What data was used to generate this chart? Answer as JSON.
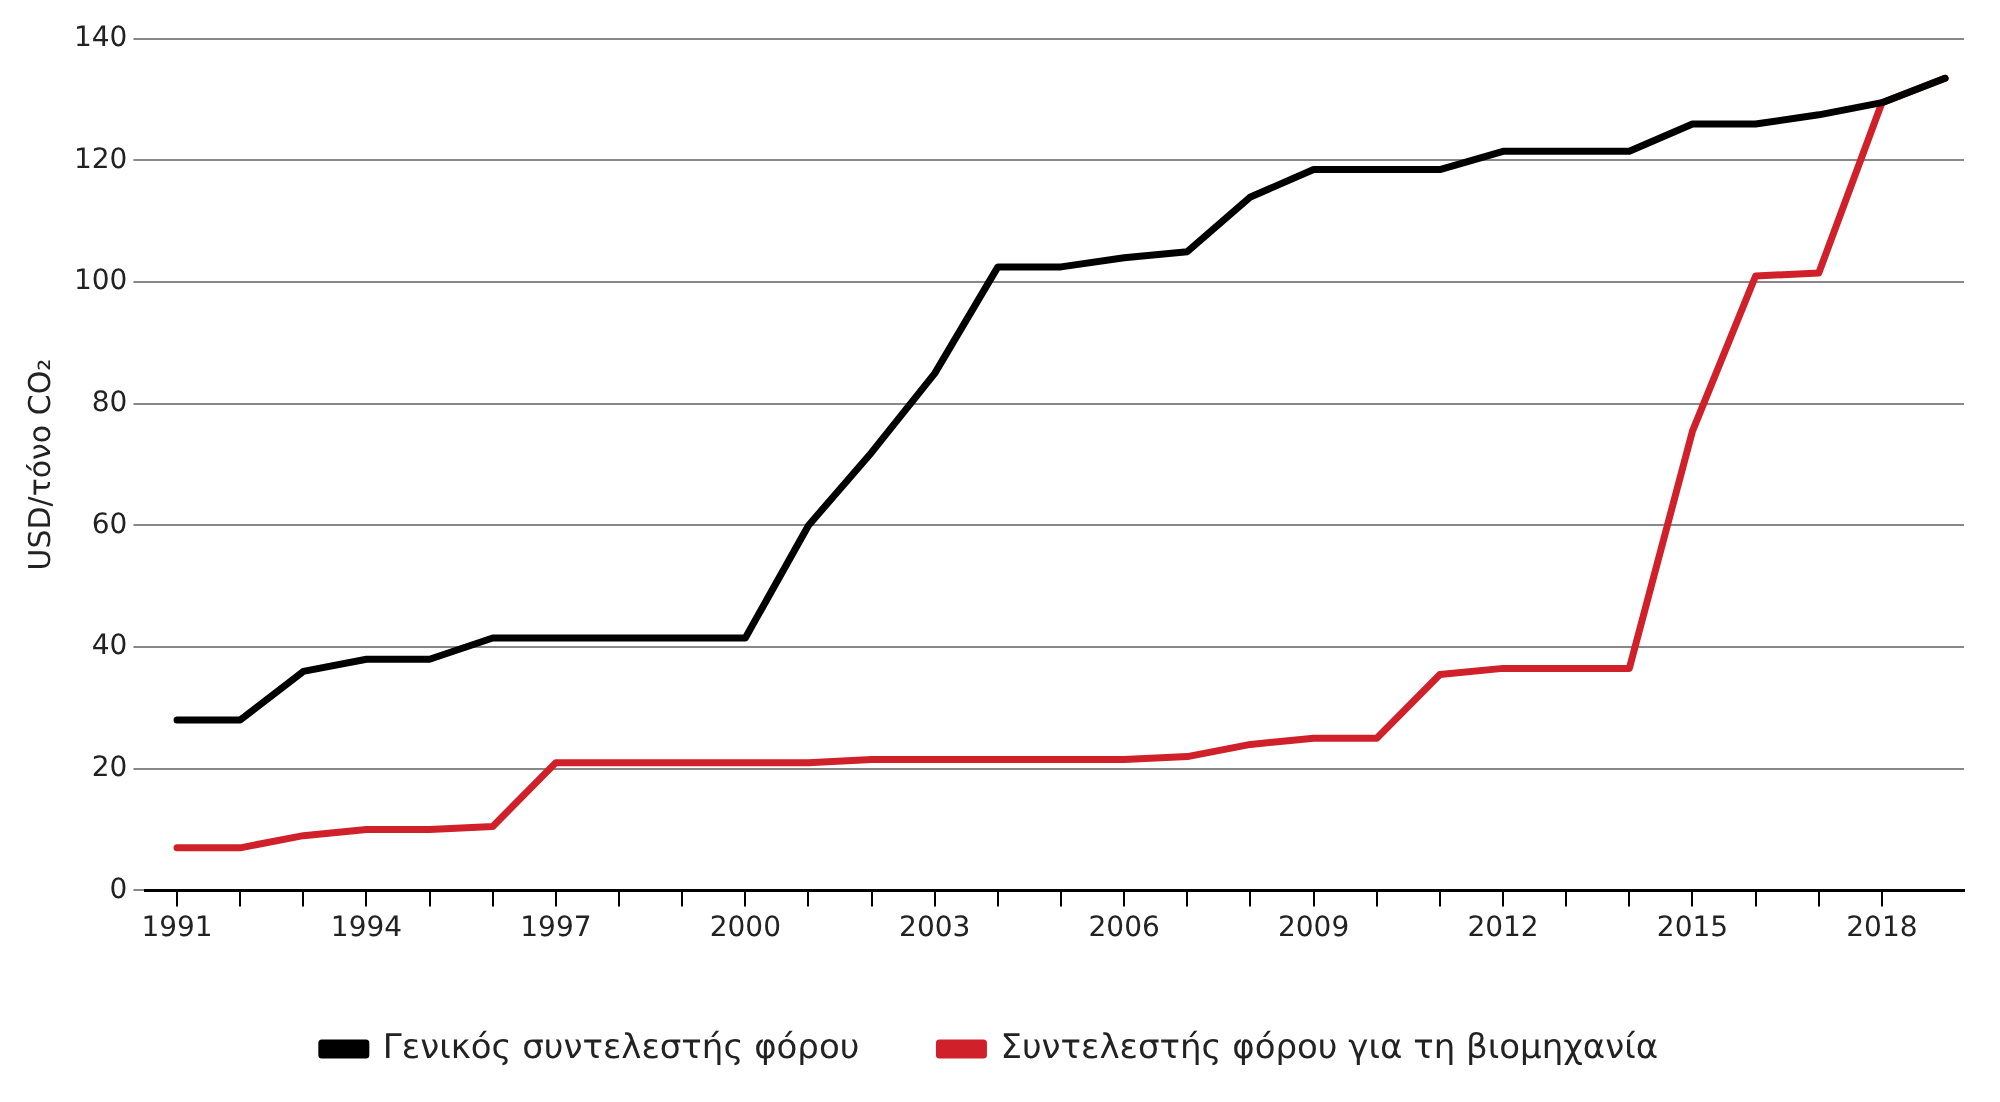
{
  "chart_data": {
    "type": "line",
    "ylabel": "USD/τόνο CO₂",
    "x": [
      1991,
      1992,
      1993,
      1994,
      1995,
      1996,
      1997,
      1998,
      1999,
      2000,
      2001,
      2002,
      2003,
      2004,
      2005,
      2006,
      2007,
      2008,
      2009,
      2010,
      2011,
      2012,
      2013,
      2014,
      2015,
      2016,
      2017,
      2018,
      2019
    ],
    "series": [
      {
        "name": "Γενικός συντελεστής φόρου",
        "color": "#000000",
        "values": [
          28,
          28,
          36,
          38,
          38,
          41.5,
          41.5,
          41.5,
          41.5,
          41.5,
          60,
          72,
          85,
          102.5,
          102.5,
          104,
          105,
          114,
          118.5,
          118.5,
          118.5,
          121.5,
          121.5,
          121.5,
          126,
          126,
          127.5,
          129.5,
          133.5
        ]
      },
      {
        "name": "Συντελεστής φόρου για τη βιομηχανία",
        "color": "#d0202a",
        "values": [
          7,
          7,
          9,
          10,
          10,
          10.5,
          21,
          21,
          21,
          21,
          21,
          21.5,
          21.5,
          21.5,
          21.5,
          21.5,
          22,
          24,
          25,
          25,
          35.5,
          36.5,
          36.5,
          36.5,
          75.5,
          101,
          101.5,
          129.5,
          133.5
        ]
      }
    ],
    "xlim": [
      1990.5,
      2019.3
    ],
    "xticks": [
      1991,
      {
        "value": 1992,
        "label": null
      },
      {
        "value": 1993,
        "label": null
      },
      1994,
      {
        "value": 1995,
        "label": null
      },
      {
        "value": 1996,
        "label": null
      },
      1997,
      {
        "value": 1998,
        "label": null
      },
      {
        "value": 1999,
        "label": null
      },
      2000,
      {
        "value": 2001,
        "label": null
      },
      {
        "value": 2002,
        "label": null
      },
      2003,
      {
        "value": 2004,
        "label": null
      },
      {
        "value": 2005,
        "label": null
      },
      2006,
      {
        "value": 2007,
        "label": null
      },
      {
        "value": 2008,
        "label": null
      },
      2009,
      {
        "value": 2010,
        "label": null
      },
      {
        "value": 2011,
        "label": null
      },
      2012,
      {
        "value": 2013,
        "label": null
      },
      {
        "value": 2014,
        "label": null
      },
      2015,
      {
        "value": 2016,
        "label": null
      },
      {
        "value": 2017,
        "label": null
      },
      2018
    ],
    "ylim": [
      0,
      140
    ],
    "yticks": [
      0,
      20,
      40,
      60,
      80,
      100,
      120,
      140
    ],
    "grid": "y",
    "legend": "bottom",
    "marker": "none",
    "line_style": "solid"
  }
}
